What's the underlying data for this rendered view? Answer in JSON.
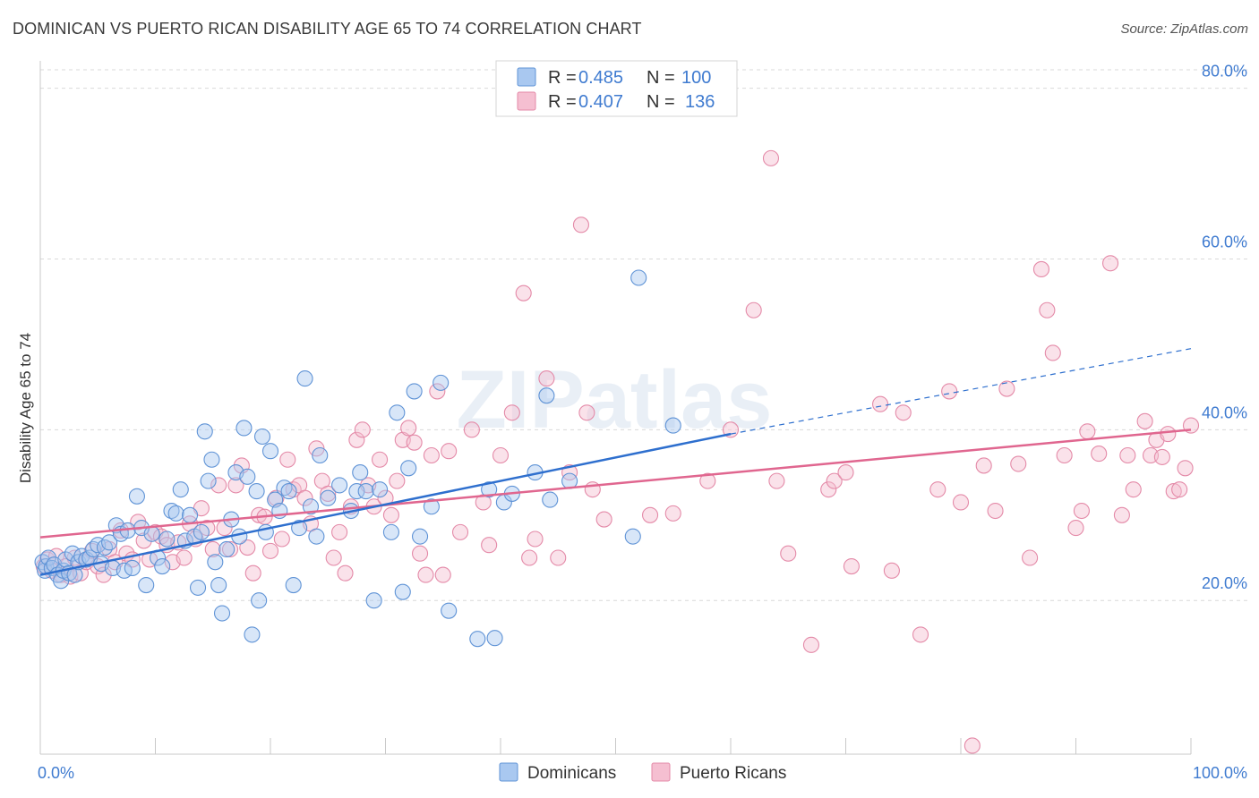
{
  "title": "DOMINICAN VS PUERTO RICAN DISABILITY AGE 65 TO 74 CORRELATION CHART",
  "source": "Source: ZipAtlas.com",
  "watermark": "ZIPatlas",
  "colors": {
    "blue_fill": "#a9c8f0",
    "blue_stroke": "#5f93d6",
    "blue_line": "#2e6fce",
    "pink_fill": "#f5bfd1",
    "pink_stroke": "#e48aa8",
    "pink_line": "#e0668f",
    "tick_text": "#3f7bd0",
    "grid": "#d9d9d9"
  },
  "chart_data": {
    "type": "scatter",
    "title": "DOMINICAN VS PUERTO RICAN DISABILITY AGE 65 TO 74 CORRELATION CHART",
    "xlabel": "",
    "ylabel": "Disability Age 65 to 74",
    "xlim": [
      0,
      100
    ],
    "ylim": [
      2,
      83
    ],
    "x_tick_labels": [
      "0.0%",
      "100.0%"
    ],
    "y_ticks": [
      20,
      40,
      60,
      80
    ],
    "y_tick_labels": [
      "20.0%",
      "40.0%",
      "60.0%",
      "80.0%"
    ],
    "grid": true,
    "legend_position": "top-center",
    "bottom_legend": [
      "Dominicans",
      "Puerto Ricans"
    ],
    "series": [
      {
        "name": "Dominicans",
        "r_label": "R =",
        "r_value": "0.485",
        "n_label": "N =",
        "n_value": "100",
        "trend": {
          "x0": 0,
          "y0": 23.0,
          "x1": 60,
          "y1": 39.5,
          "dash_x1": 100,
          "dash_y1": 49.5
        },
        "points": [
          [
            0.2,
            24.5
          ],
          [
            0.4,
            23.5
          ],
          [
            0.5,
            24.0
          ],
          [
            0.7,
            25.0
          ],
          [
            1.0,
            23.8
          ],
          [
            1.2,
            24.2
          ],
          [
            1.5,
            23.0
          ],
          [
            1.8,
            22.3
          ],
          [
            2.0,
            23.5
          ],
          [
            2.2,
            24.8
          ],
          [
            2.5,
            23.2
          ],
          [
            2.8,
            25.5
          ],
          [
            3.0,
            23.0
          ],
          [
            3.3,
            24.5
          ],
          [
            3.6,
            25.2
          ],
          [
            4.0,
            24.8
          ],
          [
            4.3,
            25.0
          ],
          [
            4.6,
            26.0
          ],
          [
            5.0,
            26.5
          ],
          [
            5.3,
            24.3
          ],
          [
            5.6,
            26.2
          ],
          [
            6.0,
            26.8
          ],
          [
            6.3,
            23.8
          ],
          [
            6.6,
            28.8
          ],
          [
            7.0,
            27.8
          ],
          [
            7.3,
            23.5
          ],
          [
            7.6,
            28.2
          ],
          [
            8.0,
            23.8
          ],
          [
            8.4,
            32.2
          ],
          [
            8.8,
            28.5
          ],
          [
            9.2,
            21.8
          ],
          [
            9.7,
            27.8
          ],
          [
            10.2,
            25.0
          ],
          [
            10.6,
            24.0
          ],
          [
            11.0,
            27.2
          ],
          [
            11.4,
            30.5
          ],
          [
            11.8,
            30.2
          ],
          [
            12.2,
            33.0
          ],
          [
            12.6,
            27.0
          ],
          [
            13.0,
            30.0
          ],
          [
            13.4,
            27.5
          ],
          [
            13.7,
            21.5
          ],
          [
            14.0,
            28.0
          ],
          [
            14.3,
            39.8
          ],
          [
            14.6,
            34.0
          ],
          [
            14.9,
            36.5
          ],
          [
            15.2,
            24.5
          ],
          [
            15.5,
            21.8
          ],
          [
            15.8,
            18.5
          ],
          [
            16.2,
            26.0
          ],
          [
            16.6,
            29.5
          ],
          [
            17.0,
            35.0
          ],
          [
            17.3,
            27.5
          ],
          [
            17.7,
            40.2
          ],
          [
            18.0,
            34.5
          ],
          [
            18.4,
            16.0
          ],
          [
            18.8,
            32.8
          ],
          [
            19.0,
            20.0
          ],
          [
            19.3,
            39.2
          ],
          [
            19.6,
            28.0
          ],
          [
            20.0,
            37.5
          ],
          [
            20.4,
            31.8
          ],
          [
            20.8,
            30.5
          ],
          [
            21.2,
            33.2
          ],
          [
            21.6,
            32.8
          ],
          [
            22.0,
            21.8
          ],
          [
            22.5,
            28.5
          ],
          [
            23.0,
            46.0
          ],
          [
            23.5,
            31.0
          ],
          [
            24.0,
            27.5
          ],
          [
            24.3,
            37.0
          ],
          [
            25.0,
            32.0
          ],
          [
            26.0,
            33.5
          ],
          [
            27.0,
            30.5
          ],
          [
            27.5,
            32.8
          ],
          [
            27.8,
            35.0
          ],
          [
            28.3,
            32.8
          ],
          [
            29.0,
            20.0
          ],
          [
            29.5,
            33.0
          ],
          [
            30.5,
            28.0
          ],
          [
            31.0,
            42.0
          ],
          [
            31.5,
            21.0
          ],
          [
            32.0,
            35.5
          ],
          [
            32.5,
            44.5
          ],
          [
            33.0,
            27.5
          ],
          [
            34.0,
            31.0
          ],
          [
            34.8,
            45.5
          ],
          [
            35.5,
            18.8
          ],
          [
            38.0,
            15.5
          ],
          [
            39.0,
            33.0
          ],
          [
            39.5,
            15.6
          ],
          [
            40.3,
            31.5
          ],
          [
            41.0,
            32.5
          ],
          [
            43.0,
            35.0
          ],
          [
            44.0,
            44.0
          ],
          [
            44.3,
            31.8
          ],
          [
            46.0,
            34.0
          ],
          [
            51.5,
            27.5
          ],
          [
            52.0,
            57.8
          ],
          [
            55.0,
            40.5
          ]
        ]
      },
      {
        "name": "Puerto Ricans",
        "r_label": "R =",
        "r_value": "0.407",
        "n_label": "N =",
        "n_value": "136",
        "trend": {
          "x0": 0,
          "y0": 27.4,
          "x1": 100,
          "y1": 40.0
        },
        "points": [
          [
            0.3,
            24.0
          ],
          [
            0.6,
            24.8
          ],
          [
            1.0,
            23.5
          ],
          [
            1.4,
            25.2
          ],
          [
            1.8,
            23.0
          ],
          [
            2.2,
            24.0
          ],
          [
            2.6,
            22.8
          ],
          [
            3.0,
            25.0
          ],
          [
            3.5,
            23.2
          ],
          [
            4.0,
            24.5
          ],
          [
            4.5,
            25.8
          ],
          [
            5.0,
            24.0
          ],
          [
            5.5,
            23.0
          ],
          [
            6.0,
            26.0
          ],
          [
            6.5,
            24.5
          ],
          [
            7.0,
            28.2
          ],
          [
            7.5,
            25.5
          ],
          [
            8.0,
            24.8
          ],
          [
            8.5,
            29.2
          ],
          [
            9.0,
            27.0
          ],
          [
            9.5,
            24.8
          ],
          [
            10.0,
            28.0
          ],
          [
            10.5,
            27.5
          ],
          [
            11.0,
            26.5
          ],
          [
            11.5,
            24.5
          ],
          [
            12.0,
            26.8
          ],
          [
            12.5,
            25.0
          ],
          [
            13.0,
            29.0
          ],
          [
            13.5,
            27.2
          ],
          [
            14.0,
            30.8
          ],
          [
            14.5,
            28.5
          ],
          [
            15.0,
            26.0
          ],
          [
            15.5,
            33.5
          ],
          [
            16.0,
            28.5
          ],
          [
            16.5,
            26.0
          ],
          [
            17.0,
            33.5
          ],
          [
            17.5,
            35.8
          ],
          [
            18.0,
            26.2
          ],
          [
            18.5,
            23.2
          ],
          [
            19.0,
            30.0
          ],
          [
            19.5,
            29.8
          ],
          [
            20.0,
            25.8
          ],
          [
            20.5,
            32.0
          ],
          [
            21.0,
            27.2
          ],
          [
            21.5,
            36.5
          ],
          [
            22.0,
            33.0
          ],
          [
            22.5,
            33.5
          ],
          [
            23.0,
            32.0
          ],
          [
            23.5,
            29.0
          ],
          [
            24.0,
            37.8
          ],
          [
            24.5,
            34.0
          ],
          [
            25.0,
            32.5
          ],
          [
            25.5,
            25.0
          ],
          [
            26.0,
            28.0
          ],
          [
            26.5,
            23.2
          ],
          [
            27.0,
            31.0
          ],
          [
            27.5,
            38.8
          ],
          [
            28.0,
            40.0
          ],
          [
            28.5,
            33.5
          ],
          [
            29.0,
            31.0
          ],
          [
            29.5,
            36.5
          ],
          [
            30.0,
            32.0
          ],
          [
            30.5,
            30.0
          ],
          [
            31.0,
            34.0
          ],
          [
            31.5,
            38.8
          ],
          [
            32.0,
            40.2
          ],
          [
            32.5,
            38.5
          ],
          [
            33.0,
            25.5
          ],
          [
            33.5,
            23.0
          ],
          [
            34.0,
            37.0
          ],
          [
            34.5,
            44.5
          ],
          [
            35.0,
            23.0
          ],
          [
            35.5,
            37.5
          ],
          [
            36.5,
            28.0
          ],
          [
            37.5,
            40.0
          ],
          [
            38.5,
            31.5
          ],
          [
            39.0,
            26.5
          ],
          [
            40.0,
            37.0
          ],
          [
            41.0,
            42.0
          ],
          [
            42.0,
            56.0
          ],
          [
            42.5,
            25.0
          ],
          [
            43.0,
            27.2
          ],
          [
            44.0,
            46.0
          ],
          [
            45.0,
            25.0
          ],
          [
            46.0,
            35.0
          ],
          [
            47.0,
            64.0
          ],
          [
            47.5,
            42.0
          ],
          [
            48.0,
            33.0
          ],
          [
            49.0,
            29.5
          ],
          [
            53.0,
            30.0
          ],
          [
            55.0,
            30.2
          ],
          [
            58.0,
            34.0
          ],
          [
            60.0,
            40.0
          ],
          [
            62.0,
            54.0
          ],
          [
            63.5,
            71.8
          ],
          [
            64.0,
            34.0
          ],
          [
            65.0,
            25.5
          ],
          [
            67.0,
            14.8
          ],
          [
            68.5,
            33.0
          ],
          [
            69.0,
            34.0
          ],
          [
            70.0,
            35.0
          ],
          [
            70.5,
            24.0
          ],
          [
            73.0,
            43.0
          ],
          [
            74.0,
            23.5
          ],
          [
            75.0,
            42.0
          ],
          [
            76.5,
            16.0
          ],
          [
            78.0,
            33.0
          ],
          [
            79.0,
            44.5
          ],
          [
            80.0,
            31.5
          ],
          [
            81.0,
            3.0
          ],
          [
            82.0,
            35.8
          ],
          [
            83.0,
            30.5
          ],
          [
            84.0,
            44.8
          ],
          [
            85.0,
            36.0
          ],
          [
            86.0,
            25.0
          ],
          [
            87.0,
            58.8
          ],
          [
            87.5,
            54.0
          ],
          [
            88.0,
            49.0
          ],
          [
            89.0,
            37.0
          ],
          [
            90.0,
            28.5
          ],
          [
            90.5,
            30.5
          ],
          [
            91.0,
            39.8
          ],
          [
            92.0,
            37.2
          ],
          [
            93.0,
            59.5
          ],
          [
            94.0,
            30.0
          ],
          [
            94.5,
            37.0
          ],
          [
            95.0,
            33.0
          ],
          [
            96.0,
            41.0
          ],
          [
            96.5,
            37.0
          ],
          [
            97.0,
            38.8
          ],
          [
            97.5,
            36.8
          ],
          [
            98.0,
            39.5
          ],
          [
            98.5,
            32.8
          ],
          [
            99.0,
            33.0
          ],
          [
            99.5,
            35.5
          ],
          [
            100.0,
            40.5
          ]
        ]
      }
    ]
  }
}
